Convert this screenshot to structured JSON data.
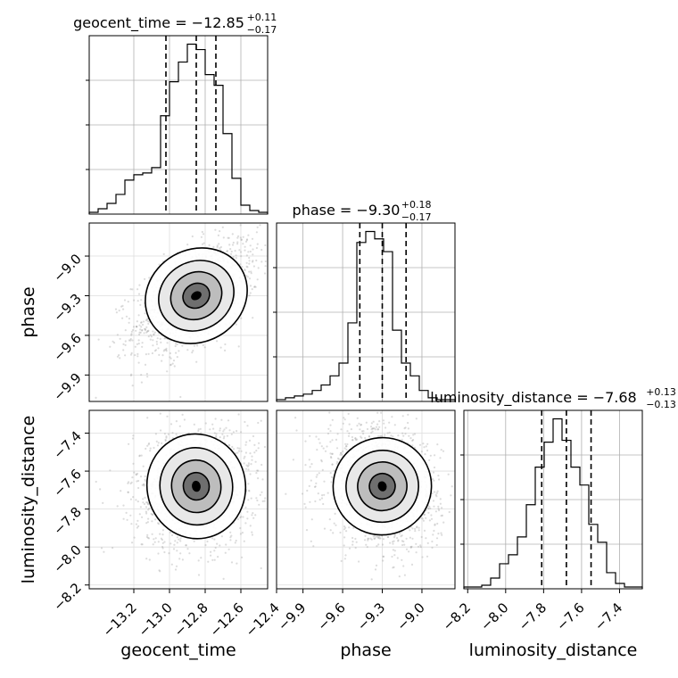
{
  "chart_data": {
    "type": "corner",
    "parameters": [
      {
        "name": "geocent_time",
        "range": [
          -13.45,
          -12.45
        ],
        "median": -12.85,
        "err_plus": 0.11,
        "err_minus": 0.17,
        "title_main": "geocent_time = −12.85",
        "title_sup": "+0.11",
        "title_sub": "−0.17",
        "quantiles": [
          -13.02,
          -12.85,
          -12.74
        ],
        "ticks": [
          -13.2,
          -13.0,
          -12.8,
          -12.6,
          -12.4
        ],
        "tick_labels": [
          "−13.2",
          "−13.0",
          "−12.8",
          "−12.6",
          "−12.4"
        ],
        "axis_label": "geocent_time",
        "hist_edges_start": -13.45,
        "hist_bin_width": 0.05,
        "hist_counts": [
          0.01,
          0.03,
          0.06,
          0.11,
          0.19,
          0.22,
          0.23,
          0.26,
          0.55,
          0.74,
          0.85,
          0.95,
          0.92,
          0.78,
          0.72,
          0.45,
          0.2,
          0.05,
          0.02,
          0.01
        ]
      },
      {
        "name": "phase",
        "range": [
          -10.1,
          -8.75
        ],
        "median": -9.3,
        "err_plus": 0.18,
        "err_minus": 0.17,
        "title_main": "phase = −9.30",
        "title_sup": "+0.18",
        "title_sub": "−0.17",
        "quantiles": [
          -9.47,
          -9.3,
          -9.12
        ],
        "ticks": [
          -9.9,
          -9.6,
          -9.3,
          -9.0
        ],
        "tick_labels": [
          "−9.9",
          "−9.6",
          "−9.3",
          "−9.0"
        ],
        "axis_label": "phase",
        "hist_edges_start": -10.1,
        "hist_bin_width": 0.0675,
        "hist_counts": [
          0.01,
          0.02,
          0.03,
          0.04,
          0.06,
          0.09,
          0.14,
          0.21,
          0.43,
          0.87,
          0.93,
          0.89,
          0.82,
          0.39,
          0.21,
          0.14,
          0.06,
          0.02,
          0.01,
          0.01
        ]
      },
      {
        "name": "luminosity_distance",
        "range": [
          -8.22,
          -7.28
        ],
        "median": -7.68,
        "err_plus": 0.13,
        "err_minus": 0.13,
        "title_main": "luminosity_distance = −7.68",
        "title_sup": "+0.13",
        "title_sub": "−0.13",
        "quantiles": [
          -7.81,
          -7.68,
          -7.55
        ],
        "ticks": [
          -8.2,
          -8.0,
          -7.8,
          -7.6,
          -7.4
        ],
        "tick_labels": [
          "−8.2",
          "−8.0",
          "−7.8",
          "−7.6",
          "−7.4"
        ],
        "axis_label": "luminosity_distance",
        "hist_edges_start": -8.22,
        "hist_bin_width": 0.047,
        "hist_counts": [
          0.01,
          0.01,
          0.02,
          0.06,
          0.14,
          0.19,
          0.29,
          0.47,
          0.68,
          0.82,
          0.95,
          0.83,
          0.68,
          0.58,
          0.36,
          0.26,
          0.09,
          0.03,
          0.01,
          0.01
        ]
      }
    ],
    "grid": true,
    "contour_levels": 4,
    "colors": {
      "line": "#000000",
      "grid": "#b0b0b0",
      "points": "#9a9a9a"
    }
  }
}
